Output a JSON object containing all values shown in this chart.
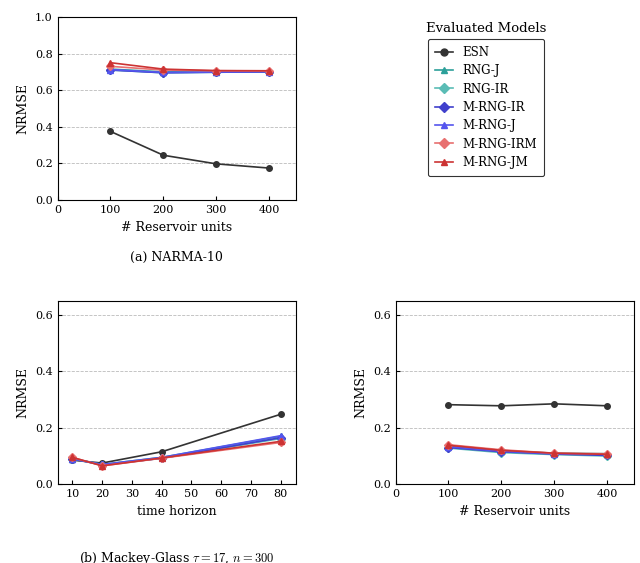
{
  "reservoir_units": [
    100,
    200,
    300,
    400
  ],
  "time_horizon": [
    10,
    20,
    40,
    80
  ],
  "narma_ESN": [
    0.375,
    0.245,
    0.198,
    0.175
  ],
  "narma_RNGJ": [
    0.715,
    0.7,
    0.7,
    0.702
  ],
  "narma_RNGIR": [
    0.71,
    0.695,
    0.698,
    0.7
  ],
  "narma_MRNGIR": [
    0.71,
    0.695,
    0.698,
    0.7
  ],
  "narma_MRNGJ": [
    0.712,
    0.697,
    0.699,
    0.701
  ],
  "narma_MRNGIRM": [
    0.73,
    0.71,
    0.706,
    0.705
  ],
  "narma_MRNGJM": [
    0.75,
    0.715,
    0.707,
    0.706
  ],
  "mg_th_ESN": [
    0.085,
    0.075,
    0.115,
    0.248
  ],
  "mg_th_RNGJ": [
    0.09,
    0.07,
    0.095,
    0.17
  ],
  "mg_th_RNGIR": [
    0.09,
    0.068,
    0.092,
    0.162
  ],
  "mg_th_MRNGIR": [
    0.09,
    0.068,
    0.092,
    0.165
  ],
  "mg_th_MRNGJ": [
    0.09,
    0.07,
    0.095,
    0.172
  ],
  "mg_th_MRNGIRM": [
    0.095,
    0.065,
    0.092,
    0.148
  ],
  "mg_th_MRNGJM": [
    0.095,
    0.065,
    0.093,
    0.152
  ],
  "mg_res_ESN": [
    0.282,
    0.278,
    0.285,
    0.278
  ],
  "mg_res_RNGJ": [
    0.135,
    0.118,
    0.11,
    0.108
  ],
  "mg_res_RNGIR": [
    0.128,
    0.112,
    0.105,
    0.1
  ],
  "mg_res_MRNGIR": [
    0.13,
    0.115,
    0.107,
    0.102
  ],
  "mg_res_MRNGJ": [
    0.133,
    0.117,
    0.108,
    0.106
  ],
  "mg_res_MRNGIRM": [
    0.14,
    0.122,
    0.11,
    0.108
  ],
  "mg_res_MRNGJM": [
    0.138,
    0.12,
    0.11,
    0.106
  ],
  "models": [
    "ESN",
    "RNG-J",
    "RNG-IR",
    "M-RNG-IR",
    "M-RNG-J",
    "M-RNG-IRM",
    "M-RNG-JM"
  ],
  "colors": [
    "#333333",
    "#2ca09a",
    "#5abcb5",
    "#4040cc",
    "#5555ee",
    "#e87070",
    "#cc3333"
  ],
  "markers": [
    "o",
    "^",
    "D",
    "D",
    "^",
    "D",
    "^"
  ],
  "legend_title": "Evaluated Models",
  "xlabel_reservoir": "# Reservoir units",
  "xlabel_th": "time horizon",
  "ylabel_nrmse": "NRMSE",
  "caption_a": "(a) NARMA-10",
  "caption_b": "(b) Mackey-Glass $\\tau = 17$, $n = 300$"
}
